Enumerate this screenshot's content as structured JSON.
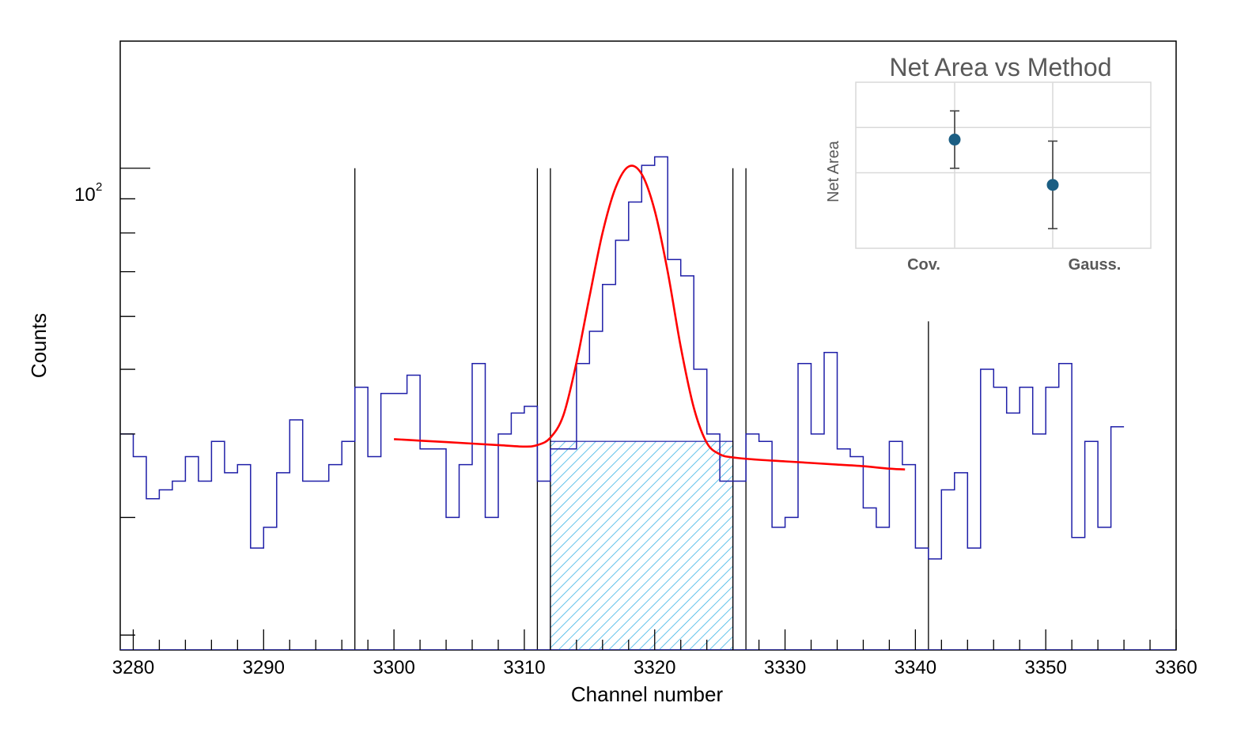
{
  "chart_data": [
    {
      "type": "histogram",
      "xlabel": "Channel number",
      "ylabel": "Counts",
      "xlim": [
        3279,
        3360
      ],
      "ylim": [
        19,
        155
      ],
      "yscale": "log",
      "x_ticks": [
        "3280",
        "3290",
        "3300",
        "3310",
        "3320",
        "3330",
        "3340",
        "3350",
        "3360"
      ],
      "y_tick_label_base": "10",
      "y_tick_label_exp": "2",
      "grid": false,
      "legend": "none",
      "colors": {
        "histogram": "#1f1fa8",
        "fit": "#ff0000",
        "hatch": "#3cb4e6",
        "markers": "#000000"
      },
      "histogram": {
        "bin_start": 3279,
        "bin_width": 1,
        "counts": [
          40,
          37,
          32,
          33,
          34,
          37,
          34,
          39,
          35,
          36,
          27,
          29,
          35,
          42,
          34,
          34,
          36,
          39,
          47,
          37,
          46,
          46,
          49,
          38,
          38,
          30,
          36,
          51,
          30,
          40,
          43,
          44,
          34,
          38,
          38,
          51,
          57,
          67,
          78,
          89,
          101,
          104,
          73,
          69,
          50,
          40,
          34,
          34,
          40,
          39,
          29,
          30,
          51,
          40,
          53,
          38,
          37,
          31,
          29,
          39,
          36,
          27,
          26,
          33,
          35,
          27,
          50,
          47,
          43,
          47,
          40,
          47,
          51,
          28,
          39,
          29,
          41
        ]
      },
      "fit": {
        "x": [
          3300,
          3302,
          3304,
          3306,
          3308,
          3310,
          3311,
          3312,
          3313,
          3314,
          3315,
          3316,
          3317,
          3318,
          3319,
          3320,
          3321,
          3322,
          3323,
          3324,
          3325,
          3326,
          3328,
          3330,
          3332,
          3334,
          3336,
          3338,
          3339.2
        ],
        "y": [
          39.3,
          39.1,
          38.9,
          38.7,
          38.5,
          38.3,
          38.5,
          39.5,
          42.7,
          51.2,
          64.2,
          80.0,
          93.5,
          100.6,
          98.0,
          86.5,
          70.0,
          54.0,
          43.8,
          38.8,
          37.3,
          36.9,
          36.6,
          36.4,
          36.2,
          36.0,
          35.8,
          35.5,
          35.4
        ]
      },
      "hatched_region": {
        "x_from": 3312,
        "x_to": 3326,
        "level": 39
      },
      "markers": [
        {
          "x": 3297,
          "top": 100
        },
        {
          "x": 3311,
          "top": 100
        },
        {
          "x": 3312,
          "top": 100
        },
        {
          "x": 3326,
          "top": 100
        },
        {
          "x": 3327,
          "top": 100
        },
        {
          "x": 3341,
          "top": 59
        }
      ]
    },
    {
      "type": "scatter",
      "title": "Net Area vs Method",
      "ylabel": "Net Area",
      "categories": [
        "Cov.",
        "Gauss."
      ],
      "values": [
        72,
        42
      ],
      "errors": [
        19,
        29
      ],
      "ylim": [
        0,
        110
      ],
      "grid": true,
      "colors": {
        "markers": "#1b5e83",
        "errorbars": "#404040",
        "grid": "#d9d9d9"
      }
    }
  ]
}
